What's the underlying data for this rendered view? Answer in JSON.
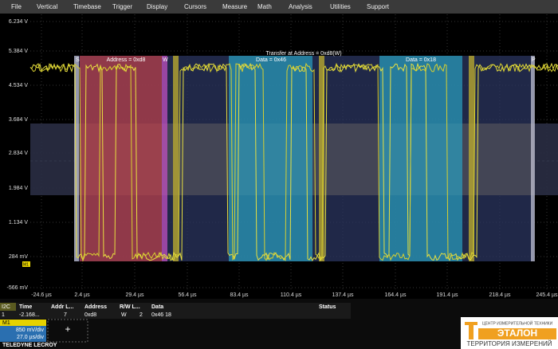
{
  "menu": [
    "File",
    "Vertical",
    "Timebase",
    "Trigger",
    "Display",
    "Cursors",
    "Measure",
    "Math",
    "Analysis",
    "Utilities",
    "Support"
  ],
  "y_axis_labels": [
    "6.234 V",
    "5.384 V",
    "4.534 V",
    "3.684 V",
    "2.834 V",
    "1.984 V",
    "1.134 V",
    "284 mV",
    "-566 mV"
  ],
  "x_axis_labels": [
    "-24.6 µs",
    "2.4 µs",
    "29.4 µs",
    "56.4 µs",
    "83.4 µs",
    "110.4 µs",
    "137.4 µs",
    "164.4 µs",
    "191.4 µs",
    "218.4 µs",
    "245.4 µs"
  ],
  "decode": {
    "title": "Transfer at Address = 0xd8(W)",
    "start": "S",
    "address": "Address = 0xd8",
    "rw": "W",
    "data": [
      "Data = 0x46",
      "Data = 0x18"
    ],
    "stop": "P"
  },
  "table": {
    "label": "I2C",
    "headers": [
      "Time",
      "Addr L...",
      "Address",
      "R/W L...",
      "Data",
      "Status"
    ],
    "rows": [
      [
        "1",
        "-2.168...",
        "7",
        "0xd8",
        "W",
        "2",
        "0x46 18"
      ]
    ]
  },
  "channel": {
    "name": "M1",
    "vdiv": "850 mV/div",
    "tdiv": "27.0 µs/div",
    "add": "+"
  },
  "footer": {
    "brand": "TELEDYNE LECROY"
  },
  "logo": {
    "name": "ЭТАЛОН",
    "subtitle": "ЦЕНТР ИЗМЕРИТЕЛЬНОЙ ТЕХНИКИ",
    "tagline": "ТЕРРИТОРИЯ ИЗМЕРЕНИЙ"
  }
}
